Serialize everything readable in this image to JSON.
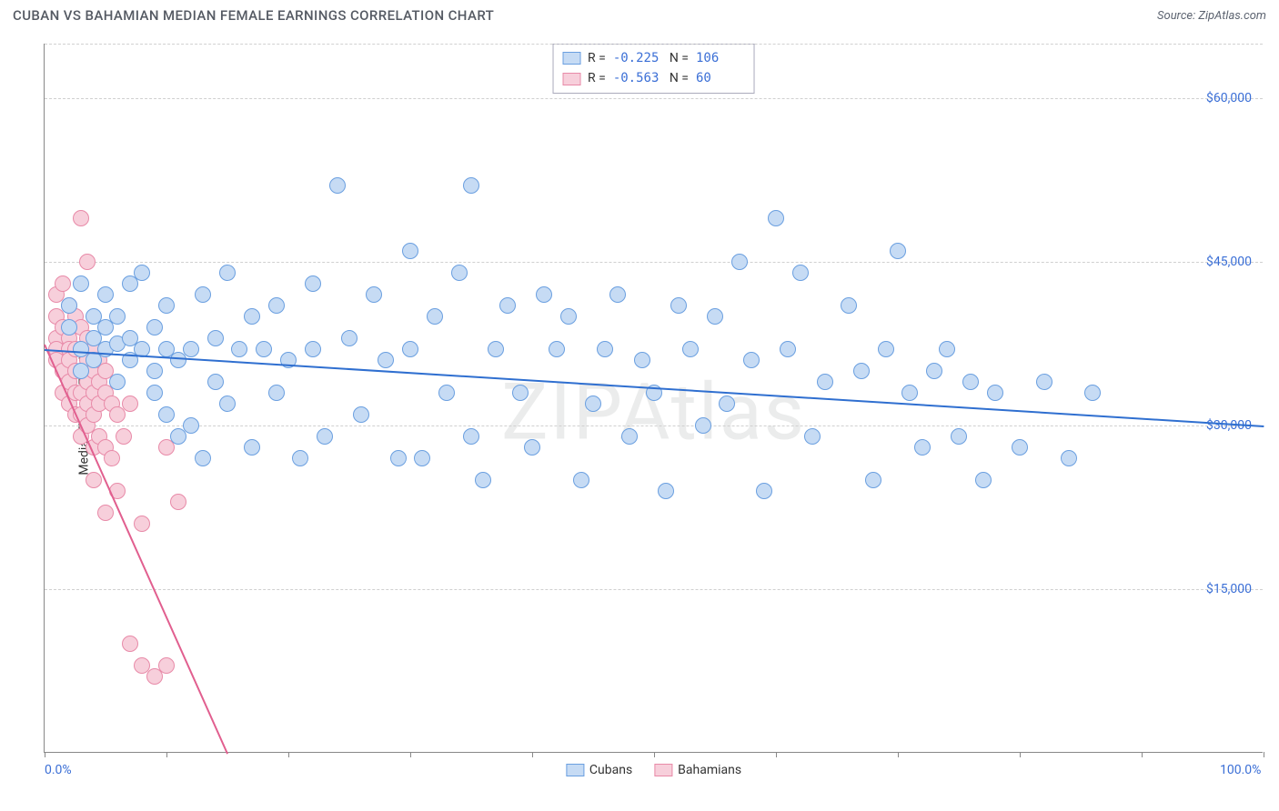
{
  "header": {
    "title": "CUBAN VS BAHAMIAN MEDIAN FEMALE EARNINGS CORRELATION CHART",
    "source": "Source: ZipAtlas.com"
  },
  "watermark": "ZIPAtlas",
  "chart": {
    "type": "scatter",
    "y_axis_label": "Median Female Earnings",
    "xlim": [
      0,
      100
    ],
    "ylim": [
      0,
      65000
    ],
    "x_ticks_pct": [
      0,
      10,
      20,
      30,
      40,
      50,
      60,
      70,
      80,
      90,
      100
    ],
    "x_tick_labels": {
      "0": "0.0%",
      "100": "100.0%"
    },
    "y_gridlines": [
      15000,
      30000,
      45000,
      60000
    ],
    "y_gridline_labels": [
      "$15,000",
      "$30,000",
      "$45,000",
      "$60,000"
    ],
    "background_color": "#ffffff",
    "grid_color": "#d0d0d0",
    "axis_color": "#888888",
    "label_color": "#3b6fd6",
    "point_radius": 9,
    "point_stroke_width": 1,
    "series": {
      "cubans": {
        "label": "Cubans",
        "fill": "#c6dbf4",
        "stroke": "#6a9fe0",
        "trend_color": "#2f6fd0",
        "R": "-0.225",
        "N": "106",
        "trend": {
          "x1": 0,
          "y1": 37000,
          "x2": 100,
          "y2": 30000
        },
        "points": [
          [
            2,
            39000
          ],
          [
            2,
            41000
          ],
          [
            3,
            37000
          ],
          [
            3,
            35000
          ],
          [
            3,
            43000
          ],
          [
            4,
            38000
          ],
          [
            4,
            40000
          ],
          [
            4,
            36000
          ],
          [
            5,
            37000
          ],
          [
            5,
            39000
          ],
          [
            5,
            42000
          ],
          [
            6,
            37500
          ],
          [
            6,
            34000
          ],
          [
            6,
            40000
          ],
          [
            7,
            38000
          ],
          [
            7,
            36000
          ],
          [
            7,
            43000
          ],
          [
            8,
            37000
          ],
          [
            8,
            44000
          ],
          [
            9,
            35000
          ],
          [
            9,
            39000
          ],
          [
            9,
            33000
          ],
          [
            10,
            37000
          ],
          [
            10,
            41000
          ],
          [
            10,
            31000
          ],
          [
            11,
            36000
          ],
          [
            11,
            29000
          ],
          [
            12,
            37000
          ],
          [
            12,
            30000
          ],
          [
            13,
            42000
          ],
          [
            13,
            27000
          ],
          [
            14,
            38000
          ],
          [
            14,
            34000
          ],
          [
            15,
            32000
          ],
          [
            15,
            44000
          ],
          [
            16,
            37000
          ],
          [
            17,
            28000
          ],
          [
            17,
            40000
          ],
          [
            18,
            37000
          ],
          [
            19,
            33000
          ],
          [
            19,
            41000
          ],
          [
            20,
            36000
          ],
          [
            21,
            27000
          ],
          [
            22,
            37000
          ],
          [
            22,
            43000
          ],
          [
            23,
            29000
          ],
          [
            24,
            52000
          ],
          [
            25,
            38000
          ],
          [
            26,
            31000
          ],
          [
            27,
            42000
          ],
          [
            28,
            36000
          ],
          [
            29,
            27000
          ],
          [
            30,
            46000
          ],
          [
            30,
            37000
          ],
          [
            31,
            27000
          ],
          [
            32,
            40000
          ],
          [
            33,
            33000
          ],
          [
            34,
            44000
          ],
          [
            35,
            52000
          ],
          [
            35,
            29000
          ],
          [
            36,
            25000
          ],
          [
            37,
            37000
          ],
          [
            38,
            41000
          ],
          [
            39,
            33000
          ],
          [
            40,
            28000
          ],
          [
            41,
            42000
          ],
          [
            42,
            37000
          ],
          [
            43,
            40000
          ],
          [
            44,
            25000
          ],
          [
            45,
            32000
          ],
          [
            46,
            37000
          ],
          [
            47,
            42000
          ],
          [
            48,
            29000
          ],
          [
            49,
            36000
          ],
          [
            50,
            33000
          ],
          [
            51,
            24000
          ],
          [
            52,
            41000
          ],
          [
            53,
            37000
          ],
          [
            54,
            30000
          ],
          [
            55,
            40000
          ],
          [
            56,
            32000
          ],
          [
            57,
            45000
          ],
          [
            58,
            36000
          ],
          [
            59,
            24000
          ],
          [
            60,
            49000
          ],
          [
            61,
            37000
          ],
          [
            62,
            44000
          ],
          [
            63,
            29000
          ],
          [
            64,
            34000
          ],
          [
            66,
            41000
          ],
          [
            67,
            35000
          ],
          [
            68,
            25000
          ],
          [
            69,
            37000
          ],
          [
            70,
            46000
          ],
          [
            71,
            33000
          ],
          [
            72,
            28000
          ],
          [
            73,
            35000
          ],
          [
            74,
            37000
          ],
          [
            75,
            29000
          ],
          [
            76,
            34000
          ],
          [
            77,
            25000
          ],
          [
            78,
            33000
          ],
          [
            80,
            28000
          ],
          [
            82,
            34000
          ],
          [
            84,
            27000
          ],
          [
            86,
            33000
          ]
        ]
      },
      "bahamians": {
        "label": "Bahamians",
        "fill": "#f7cfdb",
        "stroke": "#e88aa8",
        "trend_color": "#e15f8f",
        "R": "-0.563",
        "N": "60",
        "trend": {
          "x1": 0,
          "y1": 37500,
          "x2": 15,
          "y2": 0
        },
        "points": [
          [
            1,
            42000
          ],
          [
            1,
            40000
          ],
          [
            1,
            38000
          ],
          [
            1,
            37000
          ],
          [
            1,
            36000
          ],
          [
            1.5,
            43000
          ],
          [
            1.5,
            39000
          ],
          [
            1.5,
            35000
          ],
          [
            1.5,
            33000
          ],
          [
            2,
            41000
          ],
          [
            2,
            38000
          ],
          [
            2,
            37000
          ],
          [
            2,
            36000
          ],
          [
            2,
            34000
          ],
          [
            2,
            32000
          ],
          [
            2.5,
            40000
          ],
          [
            2.5,
            37000
          ],
          [
            2.5,
            35000
          ],
          [
            2.5,
            33000
          ],
          [
            2.5,
            31000
          ],
          [
            3,
            49000
          ],
          [
            3,
            39000
          ],
          [
            3,
            37000
          ],
          [
            3,
            35000
          ],
          [
            3,
            33000
          ],
          [
            3,
            31000
          ],
          [
            3,
            29000
          ],
          [
            3.5,
            45000
          ],
          [
            3.5,
            38000
          ],
          [
            3.5,
            36000
          ],
          [
            3.5,
            34000
          ],
          [
            3.5,
            32000
          ],
          [
            3.5,
            30000
          ],
          [
            4,
            37000
          ],
          [
            4,
            35000
          ],
          [
            4,
            33000
          ],
          [
            4,
            31000
          ],
          [
            4,
            28000
          ],
          [
            4,
            25000
          ],
          [
            4.5,
            36000
          ],
          [
            4.5,
            34000
          ],
          [
            4.5,
            32000
          ],
          [
            4.5,
            29000
          ],
          [
            5,
            35000
          ],
          [
            5,
            33000
          ],
          [
            5,
            28000
          ],
          [
            5,
            22000
          ],
          [
            5.5,
            32000
          ],
          [
            5.5,
            27000
          ],
          [
            6,
            31000
          ],
          [
            6,
            24000
          ],
          [
            6.5,
            29000
          ],
          [
            7,
            10000
          ],
          [
            7,
            32000
          ],
          [
            8,
            21000
          ],
          [
            8,
            8000
          ],
          [
            9,
            7000
          ],
          [
            10,
            28000
          ],
          [
            11,
            23000
          ],
          [
            10,
            8000
          ]
        ]
      }
    }
  }
}
